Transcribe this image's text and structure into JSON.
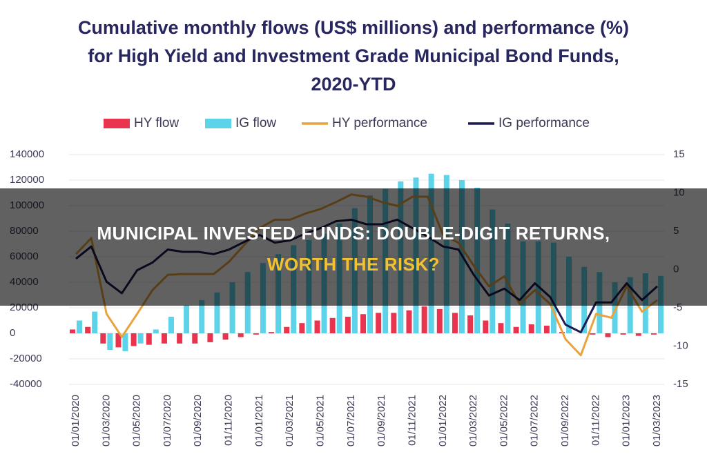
{
  "chart_data": {
    "type": "bar",
    "title": "Cumulative monthly flows (US$ millions) and performance (%) for High Yield and Investment Grade Municipal Bond Funds, 2020-YTD",
    "categories": [
      "01/01/2020",
      null,
      "01/03/2020",
      null,
      "01/05/2020",
      null,
      "01/07/2020",
      null,
      "01/09/2020",
      null,
      "01/11/2020",
      null,
      "01/01/2021",
      null,
      "01/03/2021",
      null,
      "01/05/2021",
      null,
      "01/07/2021",
      null,
      "01/09/2021",
      null,
      "01/11/2021",
      null,
      "01/01/2022",
      null,
      "01/03/2022",
      null,
      "01/05/2022",
      null,
      "01/07/2022",
      null,
      "01/09/2022",
      null,
      "01/11/2022",
      null,
      "01/01/2023",
      null,
      "01/03/2023"
    ],
    "series": [
      {
        "name": "HY flow",
        "type": "bar",
        "color": "#e8344e",
        "values": [
          3000,
          5000,
          -8000,
          -11000,
          -10000,
          -9000,
          -8000,
          -8000,
          -8000,
          -7000,
          -5000,
          -3000,
          -1000,
          1000,
          5000,
          8000,
          10000,
          12000,
          13000,
          15000,
          16000,
          16000,
          18000,
          21000,
          19000,
          16000,
          14000,
          10000,
          8000,
          5000,
          7000,
          6000,
          1000,
          0,
          -1000,
          -3000,
          -1000,
          -2000,
          -1000
        ]
      },
      {
        "name": "IG flow",
        "type": "bar",
        "color": "#5dd3ea",
        "values": [
          10000,
          17000,
          -13000,
          -14000,
          -8000,
          3000,
          13000,
          22000,
          26000,
          32000,
          40000,
          48000,
          55000,
          62000,
          69000,
          73000,
          78000,
          86000,
          98000,
          108000,
          113000,
          119000,
          122000,
          125000,
          124000,
          120000,
          114000,
          97000,
          86000,
          72000,
          72000,
          71000,
          60000,
          52000,
          48000,
          40000,
          44000,
          47000,
          45000
        ]
      },
      {
        "name": "HY performance",
        "type": "line",
        "axis": "y2",
        "color": "#e8a33d",
        "values": [
          2,
          4.1,
          -5.8,
          -8.8,
          -5.8,
          -2.7,
          -0.7,
          -0.6,
          -0.6,
          -0.6,
          1,
          3.2,
          5.4,
          6.5,
          6.5,
          7.3,
          7.9,
          8.8,
          9.8,
          9.5,
          8.8,
          8.3,
          9.5,
          9.5,
          4.5,
          3.5,
          0.5,
          -2.2,
          -0.9,
          -4.5,
          -2.7,
          -4.5,
          -9.1,
          -11.2,
          -5.8,
          -6.3,
          -2.2,
          -5.5,
          -4
        ]
      },
      {
        "name": "IG performance",
        "type": "line",
        "axis": "y2",
        "color": "#1c1a4e",
        "values": [
          1.4,
          3,
          -1.6,
          -3.1,
          -0.1,
          0.9,
          2.6,
          2.3,
          2.3,
          2,
          2.6,
          3.6,
          4.5,
          3.5,
          3.8,
          4.7,
          5.4,
          6.3,
          6.5,
          5.9,
          5.9,
          6.5,
          5.4,
          4.3,
          3,
          2.6,
          -0.7,
          -3.4,
          -2.5,
          -4,
          -1.8,
          -3.6,
          -7.2,
          -8.2,
          -4.3,
          -4.3,
          -1.8,
          -4,
          -2.2
        ]
      }
    ],
    "ylim": [
      -40000,
      140000
    ],
    "yticks": [
      -40000,
      -20000,
      0,
      20000,
      40000,
      60000,
      80000,
      100000,
      120000,
      140000
    ],
    "y2lim": [
      -15,
      15
    ],
    "y2ticks": [
      -15,
      -10,
      -5,
      0,
      5,
      10,
      15
    ],
    "grid": true,
    "legend": "top"
  },
  "banner": {
    "line1": "MUNICIPAL INVESTED FUNDS: DOUBLE-DIGIT RETURNS,",
    "line2": "WORTH THE RISK?"
  }
}
